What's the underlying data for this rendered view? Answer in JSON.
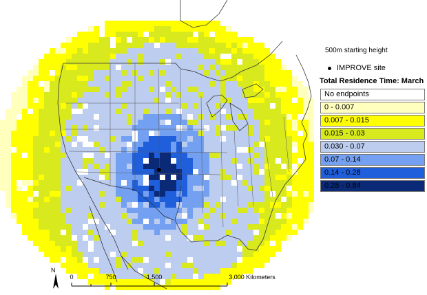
{
  "legend": {
    "starting_height": "500m starting height",
    "site_label": "IMPROVE site",
    "title": "Total Residence Time: March",
    "classes": [
      {
        "label": "No endpoints",
        "color": "#ffffff"
      },
      {
        "label": "0 - 0.007",
        "color": "#ffffbe"
      },
      {
        "label": "0.007 - 0.015",
        "color": "#ffff00"
      },
      {
        "label": "0.015 - 0.03",
        "color": "#d8ea1e"
      },
      {
        "label": "0.030 - 0.07",
        "color": "#bccdf0"
      },
      {
        "label": "0.07 - 0.14",
        "color": "#73a0f0"
      },
      {
        "label": "0.14 - 0.28",
        "color": "#1f5fdc"
      },
      {
        "label": "0.28 - 0.84",
        "color": "#0a2a78"
      }
    ]
  },
  "scale_bar": {
    "labels": [
      "0",
      "750",
      "1,500",
      "3,000 Kilometers"
    ],
    "north_label": "N"
  },
  "map_colors": {
    "grid_outline": "#888888",
    "country_line": "#333333"
  }
}
